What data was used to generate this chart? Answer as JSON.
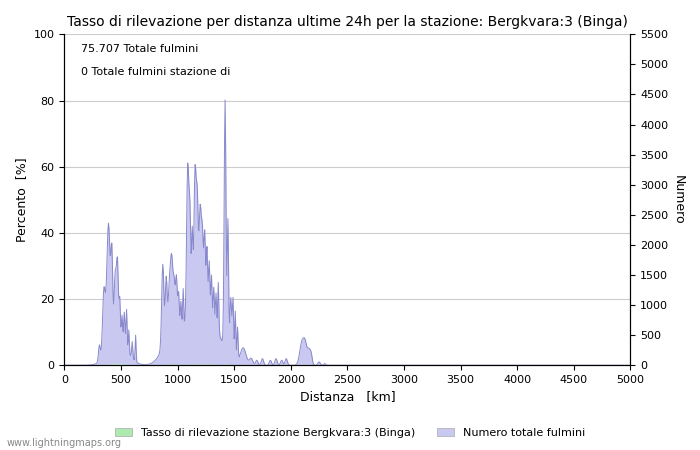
{
  "title": "Tasso di rilevazione per distanza ultime 24h per la stazione: Bergkvara:3 (Binga)",
  "xlabel": "Distanza   [km]",
  "ylabel_left": "Percento  [%]",
  "ylabel_right": "Numero",
  "annotation_line1": "75.707 Totale fulmini",
  "annotation_line2": "0 Totale fulmini stazione di",
  "legend_label1": "Tasso di rilevazione stazione Bergkvara:3 (Binga)",
  "legend_label2": "Numero totale fulmini",
  "watermark": "www.lightningmaps.org",
  "xlim": [
    0,
    5000
  ],
  "ylim_left": [
    0,
    100
  ],
  "ylim_right": [
    0,
    5500
  ],
  "xticks": [
    0,
    500,
    1000,
    1500,
    2000,
    2500,
    3000,
    3500,
    4000,
    4500,
    5000
  ],
  "yticks_left": [
    0,
    20,
    40,
    60,
    80,
    100
  ],
  "yticks_right": [
    0,
    500,
    1000,
    1500,
    2000,
    2500,
    3000,
    3500,
    4000,
    4500,
    5000,
    5500
  ],
  "color_green": "#aeeaae",
  "color_blue": "#c8c8f0",
  "color_line_blue": "#8888cc",
  "background_color": "#ffffff",
  "grid_color": "#cccccc",
  "title_fontsize": 10,
  "label_fontsize": 9,
  "tick_fontsize": 8
}
